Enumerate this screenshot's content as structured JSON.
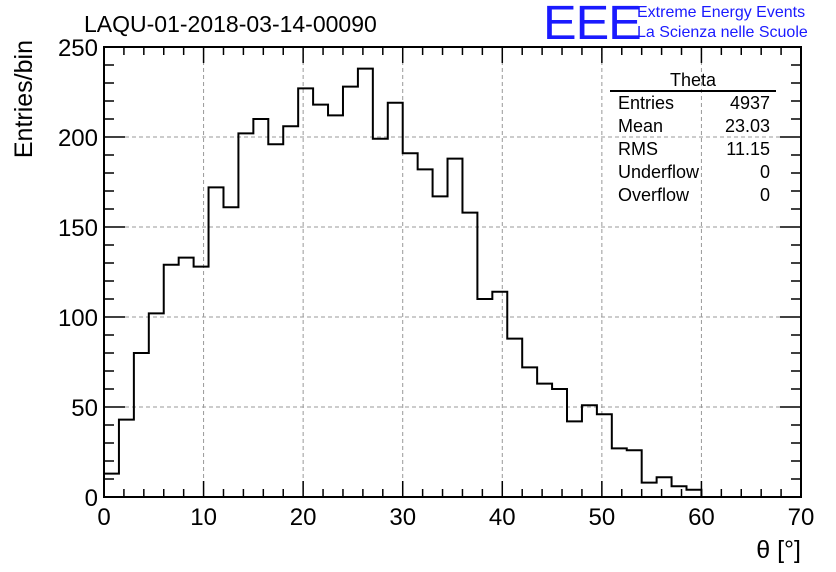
{
  "header": {
    "run_title": "LAQU-01-2018-03-14-00090",
    "brand_logo": "EEE",
    "brand_line1": "Extreme Energy Events",
    "brand_line2": "La Scienza nelle Scuole",
    "brand_color": "#1a1aff"
  },
  "stats": {
    "title": "Theta",
    "rows": [
      {
        "label": "Entries",
        "value": "4937"
      },
      {
        "label": "Mean",
        "value": "23.03"
      },
      {
        "label": "RMS",
        "value": "11.15"
      },
      {
        "label": "Underflow",
        "value": "0"
      },
      {
        "label": "Overflow",
        "value": "0"
      }
    ]
  },
  "chart_data": {
    "type": "bar",
    "style": "step-histogram",
    "title": "LAQU-01-2018-03-14-00090",
    "xlabel": "θ [°]",
    "ylabel": "Entries/bin",
    "xlim": [
      0,
      70
    ],
    "ylim": [
      0,
      250
    ],
    "bin_width": 1.5,
    "bin_start": 0,
    "values": [
      13,
      43,
      80,
      102,
      129,
      133,
      128,
      172,
      161,
      202,
      210,
      196,
      206,
      227,
      218,
      212,
      228,
      238,
      199,
      219,
      191,
      182,
      167,
      188,
      158,
      110,
      114,
      88,
      72,
      63,
      60,
      42,
      51,
      46,
      27,
      26,
      8,
      11,
      6,
      4
    ],
    "x_ticks": [
      0,
      10,
      20,
      30,
      40,
      50,
      60,
      70
    ],
    "y_ticks": [
      0,
      50,
      100,
      150,
      200,
      250
    ],
    "x_tick_labels": [
      "0",
      "10",
      "20",
      "30",
      "40",
      "50",
      "60",
      "70"
    ],
    "y_tick_labels": [
      "0",
      "50",
      "100",
      "150",
      "200",
      "250"
    ],
    "grid": true,
    "line_color": "#000000",
    "grid_color": "#999999"
  }
}
